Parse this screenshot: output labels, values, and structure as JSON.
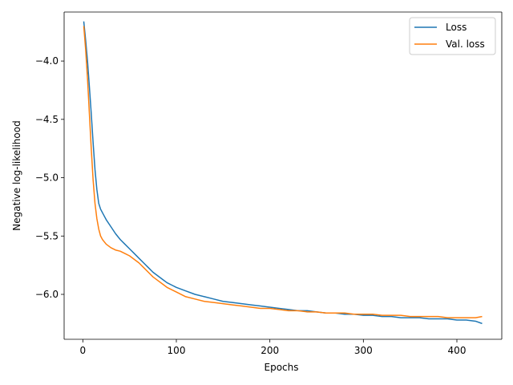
{
  "chart_data": {
    "type": "line",
    "title": "",
    "xlabel": "Epochs",
    "ylabel": "Negative log-likelihood",
    "xlim": [
      -20,
      448
    ],
    "ylim": [
      -6.385,
      -3.58
    ],
    "xticks": [
      0,
      100,
      200,
      300,
      400
    ],
    "yticks": [
      -6.0,
      -5.5,
      -5.0,
      -4.5,
      -4.0
    ],
    "xtick_labels": [
      "0",
      "100",
      "200",
      "300",
      "400"
    ],
    "ytick_labels": [
      "−6.0",
      "−5.5",
      "−5.0",
      "−4.5",
      "−4.0"
    ],
    "grid": false,
    "legend": "top-right",
    "series": [
      {
        "name": "Loss",
        "color": "#1f77b4",
        "x": [
          1,
          3,
          5,
          7,
          9,
          11,
          13,
          15,
          17,
          19,
          21,
          23,
          25,
          30,
          35,
          40,
          45,
          50,
          55,
          60,
          65,
          70,
          75,
          80,
          85,
          90,
          95,
          100,
          110,
          120,
          130,
          140,
          150,
          160,
          170,
          180,
          190,
          200,
          210,
          220,
          230,
          240,
          250,
          260,
          270,
          280,
          290,
          300,
          310,
          320,
          330,
          340,
          350,
          360,
          370,
          380,
          390,
          400,
          410,
          420,
          427
        ],
        "y": [
          -3.66,
          -3.82,
          -4.0,
          -4.22,
          -4.45,
          -4.7,
          -4.93,
          -5.1,
          -5.22,
          -5.27,
          -5.3,
          -5.33,
          -5.36,
          -5.42,
          -5.48,
          -5.53,
          -5.57,
          -5.61,
          -5.65,
          -5.69,
          -5.73,
          -5.77,
          -5.81,
          -5.84,
          -5.87,
          -5.9,
          -5.92,
          -5.94,
          -5.97,
          -6.0,
          -6.02,
          -6.04,
          -6.06,
          -6.07,
          -6.08,
          -6.09,
          -6.1,
          -6.11,
          -6.12,
          -6.13,
          -6.14,
          -6.14,
          -6.15,
          -6.16,
          -6.16,
          -6.17,
          -6.17,
          -6.18,
          -6.18,
          -6.19,
          -6.19,
          -6.2,
          -6.2,
          -6.2,
          -6.21,
          -6.21,
          -6.21,
          -6.22,
          -6.22,
          -6.23,
          -6.25
        ]
      },
      {
        "name": "Val. loss",
        "color": "#ff7f0e",
        "x": [
          1,
          3,
          5,
          7,
          9,
          11,
          13,
          15,
          17,
          19,
          21,
          23,
          25,
          30,
          35,
          40,
          45,
          50,
          55,
          60,
          65,
          70,
          75,
          80,
          85,
          90,
          95,
          100,
          110,
          120,
          130,
          140,
          150,
          160,
          170,
          180,
          190,
          200,
          210,
          220,
          230,
          240,
          250,
          260,
          270,
          280,
          290,
          300,
          310,
          320,
          330,
          340,
          350,
          360,
          370,
          380,
          390,
          400,
          410,
          420,
          427
        ],
        "y": [
          -3.7,
          -3.9,
          -4.15,
          -4.45,
          -4.75,
          -5.02,
          -5.22,
          -5.35,
          -5.44,
          -5.5,
          -5.53,
          -5.55,
          -5.57,
          -5.6,
          -5.62,
          -5.63,
          -5.65,
          -5.67,
          -5.7,
          -5.73,
          -5.77,
          -5.81,
          -5.85,
          -5.88,
          -5.91,
          -5.94,
          -5.96,
          -5.98,
          -6.02,
          -6.04,
          -6.06,
          -6.07,
          -6.08,
          -6.09,
          -6.1,
          -6.11,
          -6.12,
          -6.12,
          -6.13,
          -6.14,
          -6.14,
          -6.15,
          -6.15,
          -6.16,
          -6.16,
          -6.16,
          -6.17,
          -6.17,
          -6.17,
          -6.18,
          -6.18,
          -6.18,
          -6.19,
          -6.19,
          -6.19,
          -6.19,
          -6.2,
          -6.2,
          -6.2,
          -6.2,
          -6.19
        ]
      }
    ]
  }
}
